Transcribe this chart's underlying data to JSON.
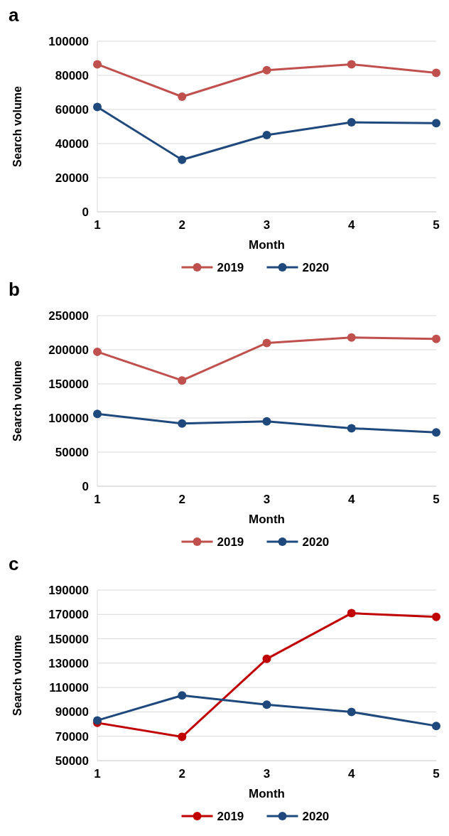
{
  "chart_data": [
    {
      "type": "line",
      "title": "a",
      "xlabel": "Month",
      "ylabel": "Search volume",
      "x": [
        1,
        2,
        3,
        4,
        5
      ],
      "xlim": [
        1,
        5
      ],
      "xticks": [
        1,
        2,
        3,
        4,
        5
      ],
      "ylim": [
        0,
        100000
      ],
      "yticks": [
        0,
        20000,
        40000,
        60000,
        80000,
        100000
      ],
      "grid": "y",
      "legend": "bottom",
      "marker": "circle",
      "line_style": "solid",
      "series": [
        {
          "name": "2019",
          "color": "#c0504d",
          "values": [
            86500,
            67500,
            83000,
            86500,
            81500
          ]
        },
        {
          "name": "2020",
          "color": "#1f497d",
          "values": [
            61500,
            30500,
            45000,
            52500,
            52000
          ]
        }
      ]
    },
    {
      "type": "line",
      "title": "b",
      "xlabel": "Month",
      "ylabel": "Search volume",
      "x": [
        1,
        2,
        3,
        4,
        5
      ],
      "xlim": [
        1,
        5
      ],
      "xticks": [
        1,
        2,
        3,
        4,
        5
      ],
      "ylim": [
        0,
        250000
      ],
      "yticks": [
        0,
        50000,
        100000,
        150000,
        200000,
        250000
      ],
      "grid": "y",
      "legend": "bottom",
      "marker": "circle",
      "line_style": "solid",
      "series": [
        {
          "name": "2019",
          "color": "#c0504d",
          "values": [
            197000,
            155000,
            210000,
            218000,
            216000
          ]
        },
        {
          "name": "2020",
          "color": "#1f497d",
          "values": [
            106000,
            92000,
            95000,
            85000,
            79000
          ]
        }
      ]
    },
    {
      "type": "line",
      "title": "c",
      "xlabel": "Month",
      "ylabel": "Search volume",
      "x": [
        1,
        2,
        3,
        4,
        5
      ],
      "xlim": [
        1,
        5
      ],
      "xticks": [
        1,
        2,
        3,
        4,
        5
      ],
      "ylim": [
        50000,
        190000
      ],
      "yticks": [
        50000,
        70000,
        90000,
        110000,
        130000,
        150000,
        170000,
        190000
      ],
      "grid": "y",
      "legend": "bottom",
      "marker": "circle",
      "line_style": "solid",
      "series": [
        {
          "name": "2019",
          "color": "#c00000",
          "values": [
            81000,
            69500,
            133500,
            171000,
            168000
          ]
        },
        {
          "name": "2020",
          "color": "#1f497d",
          "values": [
            83000,
            103500,
            96000,
            90000,
            78500
          ]
        }
      ]
    }
  ]
}
